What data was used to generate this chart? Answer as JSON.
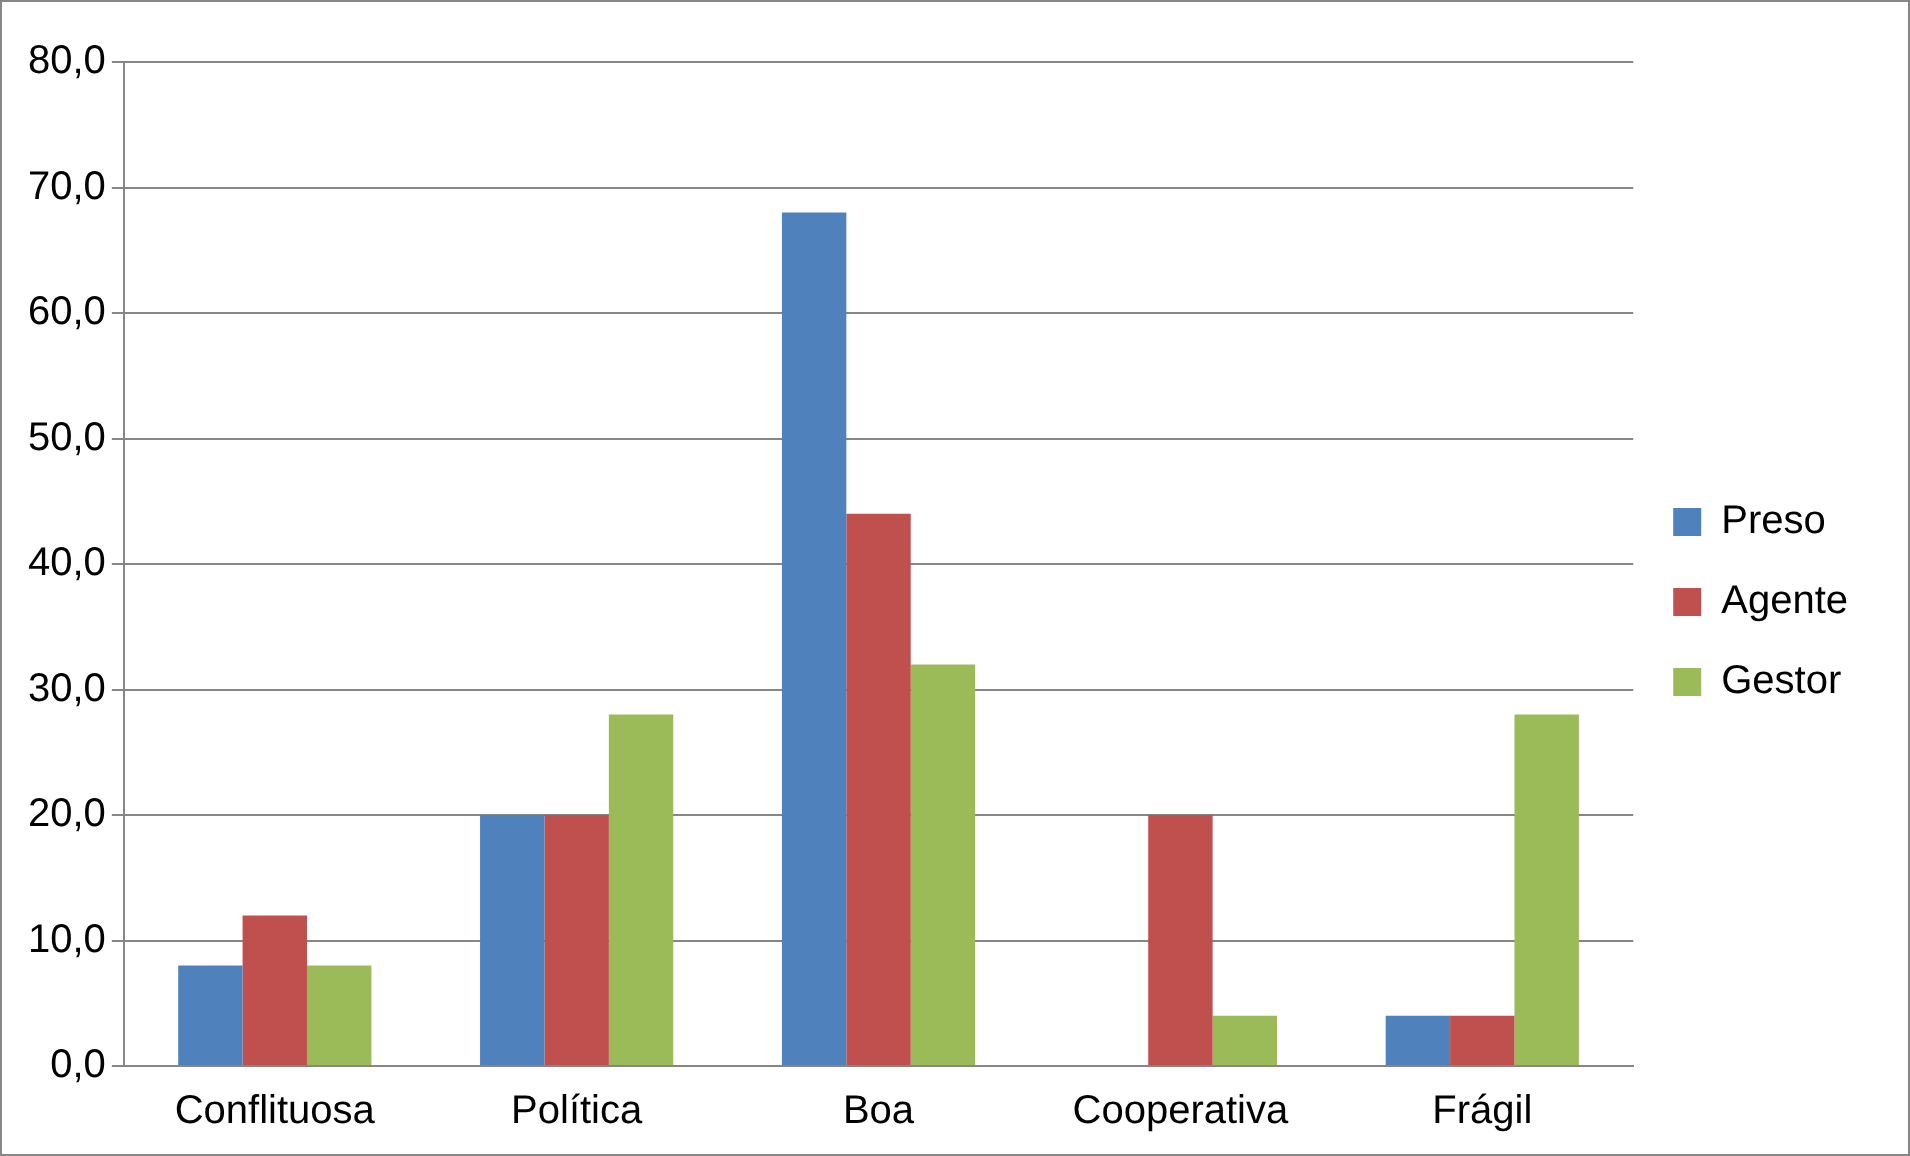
{
  "chart_data": {
    "type": "bar",
    "categories": [
      "Conflituosa",
      "Política",
      "Boa",
      "Cooperativa",
      "Frágil"
    ],
    "series": [
      {
        "name": "Preso",
        "color": "#4f81bd",
        "values": [
          8,
          20,
          68,
          0,
          4
        ]
      },
      {
        "name": "Agente",
        "color": "#c0504d",
        "values": [
          12,
          20,
          44,
          20,
          4
        ]
      },
      {
        "name": "Gestor",
        "color": "#9bbb59",
        "values": [
          8,
          28,
          32,
          4,
          28
        ]
      }
    ],
    "ylim": [
      0,
      80
    ],
    "yticks": [
      {
        "value": 0,
        "label": "0,0"
      },
      {
        "value": 10,
        "label": "10,0"
      },
      {
        "value": 20,
        "label": "20,0"
      },
      {
        "value": 30,
        "label": "30,0"
      },
      {
        "value": 40,
        "label": "40,0"
      },
      {
        "value": 50,
        "label": "50,0"
      },
      {
        "value": 60,
        "label": "60,0"
      },
      {
        "value": 70,
        "label": "70,0"
      },
      {
        "value": 80,
        "label": "80,0"
      }
    ],
    "grid": "y",
    "legend": "right"
  }
}
